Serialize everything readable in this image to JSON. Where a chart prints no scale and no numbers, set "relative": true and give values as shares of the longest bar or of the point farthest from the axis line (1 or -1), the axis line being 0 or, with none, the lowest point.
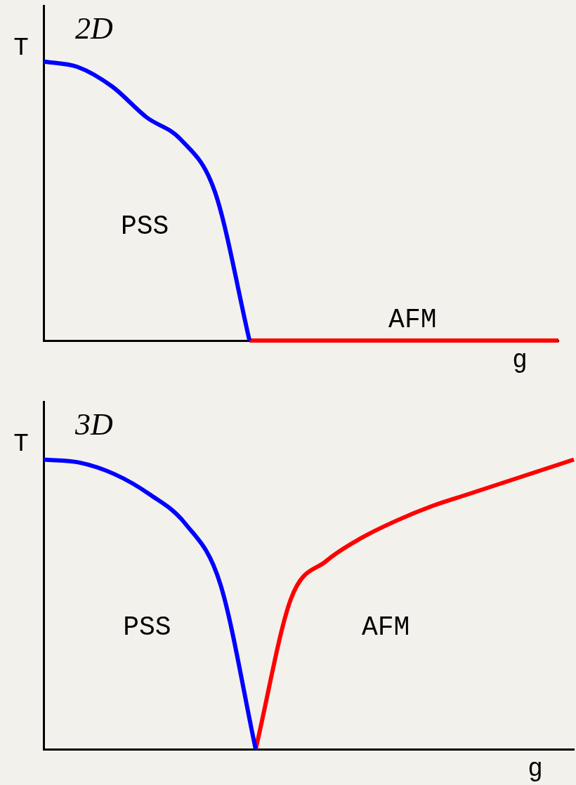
{
  "chart_data": [
    {
      "type": "line",
      "title": "2D",
      "xlabel": "g",
      "ylabel": "T",
      "annotations": [
        "PSS",
        "AFM"
      ],
      "relative": true,
      "marker": "none",
      "line_style": "solid",
      "legend": false,
      "grid": false,
      "categories": [
        null,
        null,
        null,
        null,
        null,
        null,
        null,
        null,
        null,
        null,
        null,
        null,
        null,
        null,
        null,
        null
      ],
      "series": [
        {
          "color": "#0000ff",
          "values": [
            1,
            0.98,
            0.91,
            0.8,
            0.72,
            0.53,
            0,
            null,
            null,
            null,
            null,
            null,
            null,
            null,
            null,
            null
          ]
        },
        {
          "color": "#ff0000",
          "values": [
            null,
            null,
            null,
            null,
            null,
            null,
            0,
            0,
            0,
            0,
            0,
            0,
            0,
            0,
            0,
            0
          ]
        }
      ]
    },
    {
      "type": "line",
      "title": "3D",
      "xlabel": "g",
      "ylabel": "T",
      "annotations": [
        "PSS",
        "AFM"
      ],
      "relative": true,
      "marker": "none",
      "line_style": "solid",
      "legend": false,
      "grid": false,
      "categories": [
        null,
        null,
        null,
        null,
        null,
        null,
        null,
        null,
        null,
        null,
        null,
        null,
        null,
        null,
        null,
        null
      ],
      "series": [
        {
          "color": "#0000ff",
          "values": [
            1,
            0.99,
            0.95,
            0.88,
            0.78,
            0.57,
            0,
            null,
            null,
            null,
            null,
            null,
            null,
            null,
            null,
            null
          ]
        },
        {
          "color": "#ff0000",
          "values": [
            null,
            null,
            null,
            null,
            null,
            null,
            0,
            0.52,
            0.65,
            0.73,
            0.79,
            0.84,
            0.88,
            0.92,
            0.96,
            1
          ]
        }
      ]
    }
  ]
}
